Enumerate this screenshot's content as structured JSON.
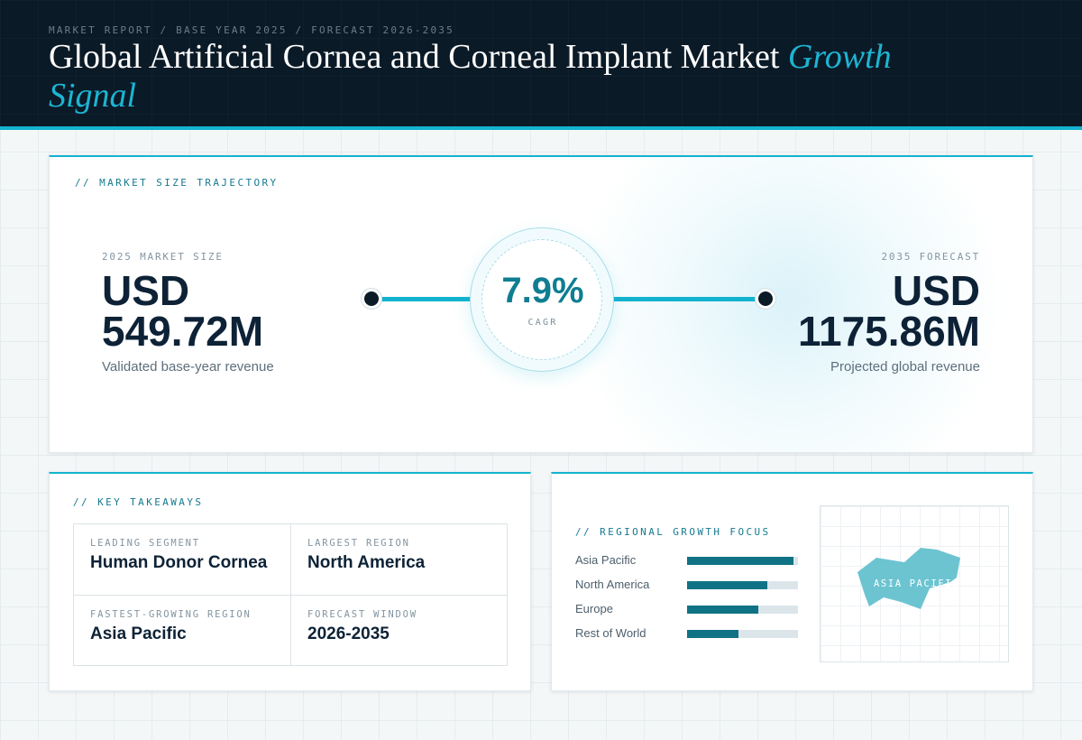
{
  "header": {
    "eyebrow": "MARKET REPORT / BASE YEAR 2025 / FORECAST 2026-2035",
    "title_main": "Global Artificial Cornea and Corneal Implant Market",
    "title_accent": "Growth Signal"
  },
  "hero": {
    "label": "// MARKET SIZE TRAJECTORY",
    "left": {
      "caption": "2025 MARKET SIZE",
      "currency": "USD",
      "value": "549.72M",
      "desc": "Validated base-year revenue"
    },
    "cagr": {
      "value": "7.9%",
      "label": "CAGR"
    },
    "right": {
      "caption": "2035 FORECAST",
      "currency": "USD",
      "value": "1175.86M",
      "desc": "Projected global revenue"
    }
  },
  "takeaways": {
    "label": "// KEY TAKEAWAYS",
    "items": [
      {
        "label": "LEADING SEGMENT",
        "value": "Human Donor Cornea"
      },
      {
        "label": "LARGEST REGION",
        "value": "North America"
      },
      {
        "label": "FASTEST-GROWING REGION",
        "value": "Asia Pacific"
      },
      {
        "label": "FORECAST WINDOW",
        "value": "2026-2035"
      }
    ]
  },
  "regional": {
    "label": "// REGIONAL GROWTH FOCUS",
    "bars": [
      {
        "name": "Asia Pacific",
        "value": 0.96
      },
      {
        "name": "North America",
        "value": 0.72
      },
      {
        "name": "Europe",
        "value": 0.64
      },
      {
        "name": "Rest of World",
        "value": 0.46
      }
    ],
    "map_label": "ASIA PACIFIC"
  },
  "colors": {
    "accent": "#13b3cf",
    "navy": "#0b1a27",
    "bar_fill": "#0f7385",
    "map_shape": "#6cc4d1"
  }
}
